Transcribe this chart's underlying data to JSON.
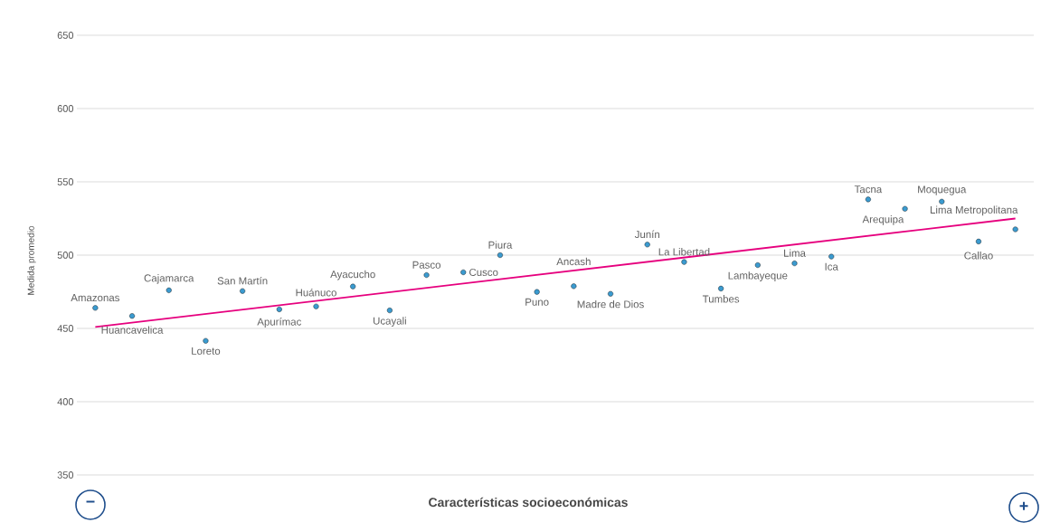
{
  "chart_data": {
    "type": "scatter",
    "xlabel": "Características socioeconómicas",
    "ylabel": "Medida promedio",
    "categories": [
      null,
      null,
      null,
      null,
      null,
      null,
      null,
      null,
      null,
      null,
      null,
      null,
      null,
      null,
      null,
      null,
      null,
      null,
      null,
      null,
      null,
      null,
      null,
      null,
      null,
      null
    ],
    "ylim": [
      350,
      650
    ],
    "yticks": [
      350,
      400,
      450,
      500,
      550,
      600,
      650
    ],
    "grid": "y",
    "tick_labels": "y",
    "series": [
      {
        "color": "#3b9bd0",
        "marker": "circle",
        "values": [
          464,
          458.5,
          476,
          441.5,
          475.5,
          463,
          465,
          478.6,
          462.3,
          486.4,
          488.3,
          500,
          474.9,
          478.8,
          473.6,
          507.2,
          495.3,
          477.2,
          493.2,
          494.4,
          499,
          538,
          531.6,
          536.5,
          509.3,
          517.6
        ]
      },
      {
        "type": "line",
        "color": "#e6007e",
        "values": [
          451,
          null,
          null,
          null,
          null,
          null,
          null,
          null,
          null,
          null,
          null,
          null,
          null,
          null,
          null,
          null,
          null,
          null,
          null,
          null,
          null,
          null,
          null,
          null,
          null,
          525
        ]
      }
    ],
    "annotations": [
      "Amazonas",
      "Huancavelica",
      "Cajamarca",
      "Loreto",
      "San Martín",
      "Apurímac",
      "Huánuco",
      "Ayacucho",
      "Ucayali",
      "Pasco",
      "Cusco",
      "Piura",
      "Puno",
      "Ancash",
      "Madre de Dios",
      "Junín",
      "La Libertad",
      "Tumbes",
      "Lambayeque",
      "Lima",
      "Ica",
      "Tacna",
      "Arequipa",
      "Moquegua",
      "Callao",
      "Lima Metropolitana",
      "−",
      "+"
    ]
  }
}
